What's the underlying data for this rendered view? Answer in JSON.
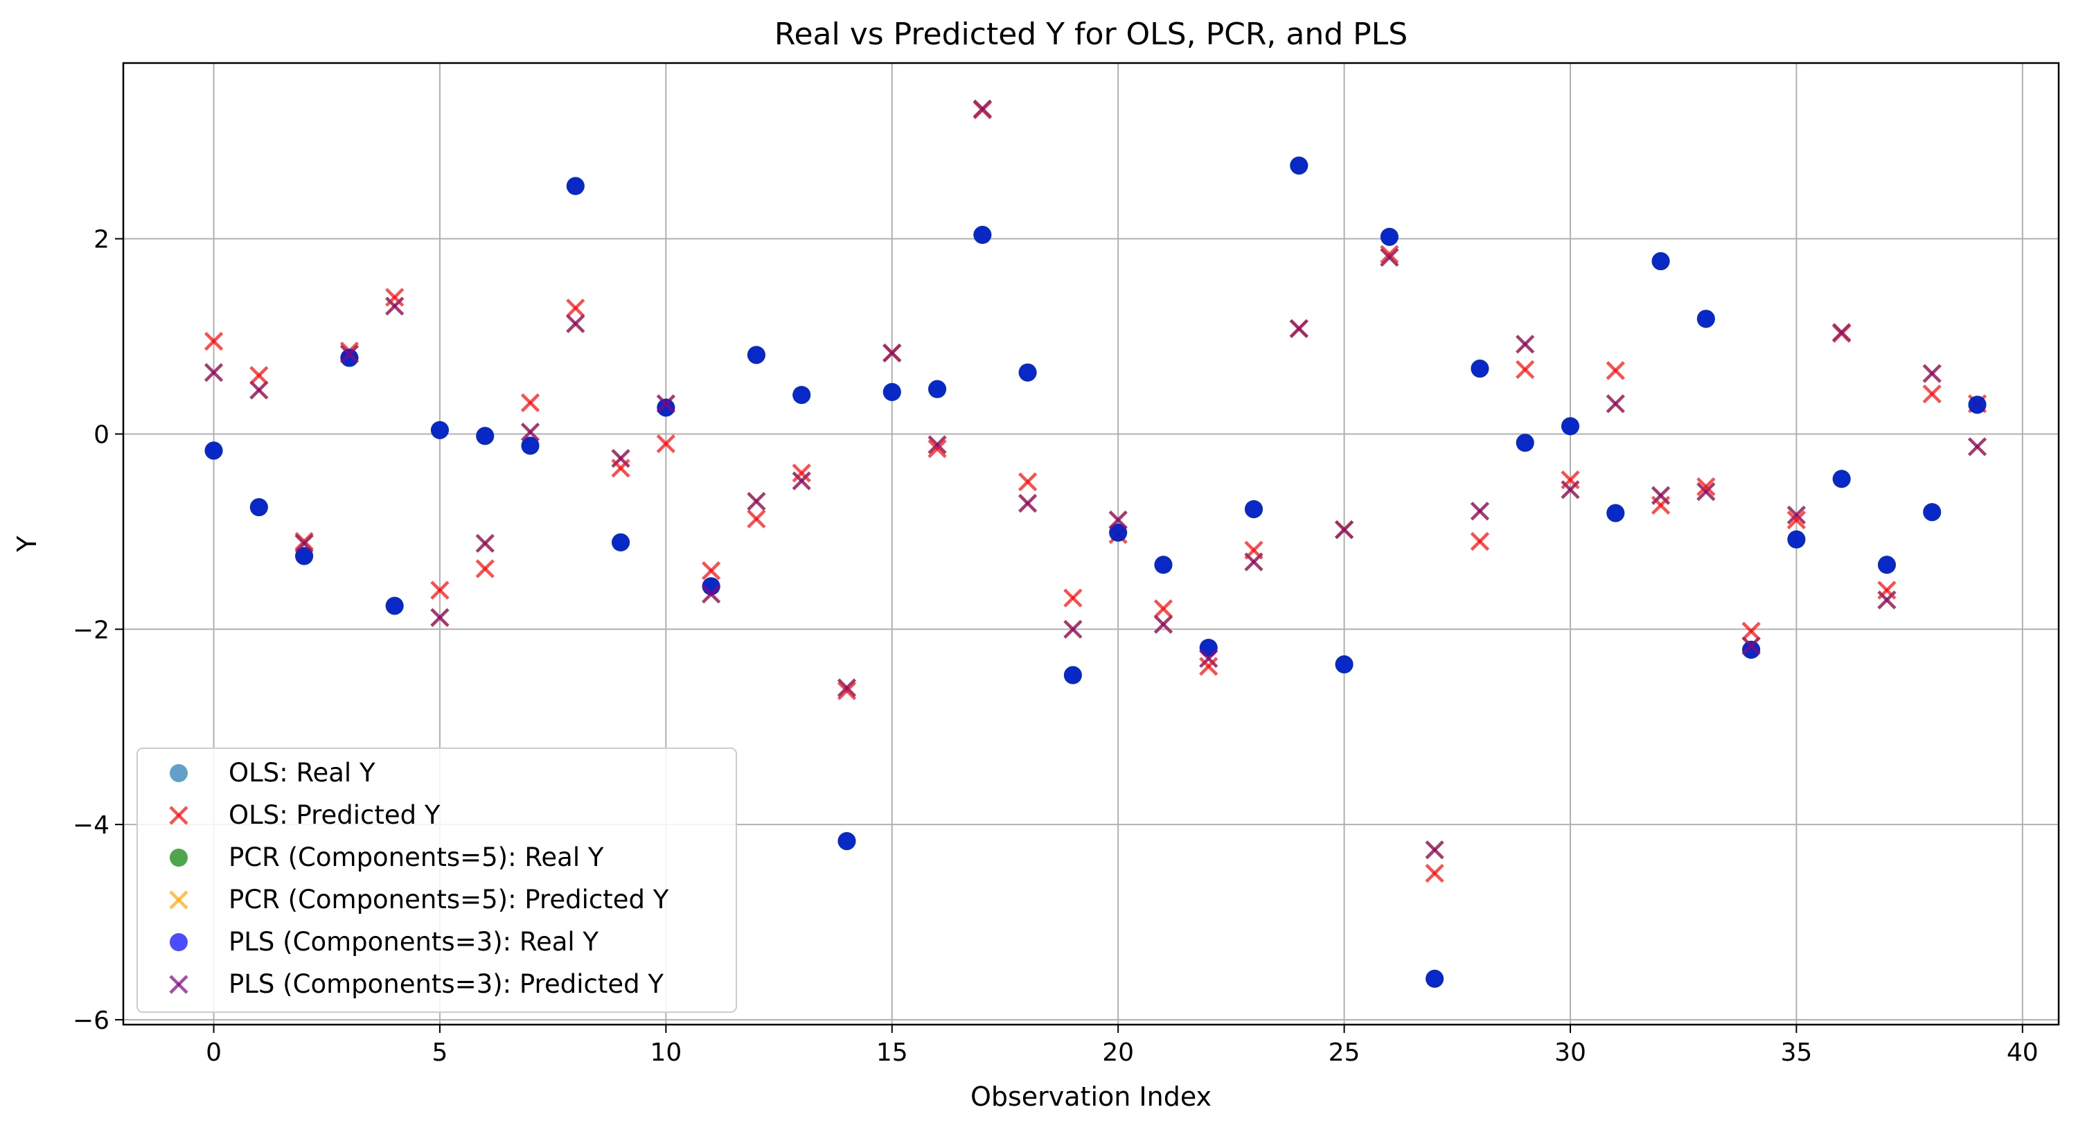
{
  "chart_data": {
    "type": "scatter",
    "title": "Real vs Predicted Y for OLS, PCR, and PLS",
    "xlabel": "Observation Index",
    "ylabel": "Y",
    "xlim": [
      -2,
      40.8
    ],
    "ylim": [
      -6.05,
      3.8
    ],
    "x_ticks": [
      0,
      5,
      10,
      15,
      20,
      25,
      30,
      35,
      40
    ],
    "y_ticks": [
      -6,
      -4,
      -2,
      0,
      2
    ],
    "x_tick_labels": [
      "0",
      "5",
      "10",
      "15",
      "20",
      "25",
      "30",
      "35",
      "40"
    ],
    "y_tick_labels": [
      "−6",
      "−4",
      "−2",
      "0",
      "2"
    ],
    "grid": true,
    "legend_position": "lower-left",
    "x": [
      0,
      1,
      2,
      3,
      4,
      5,
      6,
      7,
      8,
      9,
      10,
      11,
      12,
      13,
      14,
      15,
      16,
      17,
      18,
      19,
      20,
      21,
      22,
      23,
      24,
      25,
      26,
      27,
      28,
      29,
      30,
      31,
      32,
      33,
      34,
      35,
      36,
      37,
      38,
      39
    ],
    "series": [
      {
        "name": "OLS: Real Y",
        "marker": "circle",
        "color": "#1f77b4",
        "values": [
          -0.17,
          -0.75,
          -1.25,
          0.78,
          -1.76,
          0.04,
          -0.02,
          -0.12,
          2.54,
          -1.11,
          0.27,
          -1.56,
          0.81,
          0.4,
          -4.17,
          0.43,
          0.46,
          2.04,
          0.63,
          -2.47,
          -1.01,
          -1.34,
          -2.19,
          -0.77,
          2.75,
          -2.36,
          2.02,
          -5.58,
          0.67,
          -0.09,
          0.08,
          -0.81,
          1.77,
          1.18,
          -2.21,
          -1.08,
          -0.46,
          -1.34,
          -0.8,
          0.3
        ]
      },
      {
        "name": "OLS: Predicted Y",
        "marker": "x",
        "color": "#ff0000",
        "values": [
          0.95,
          0.6,
          -1.1,
          0.85,
          1.4,
          -1.6,
          -1.38,
          0.32,
          1.29,
          -0.35,
          -0.1,
          -1.4,
          -0.87,
          -0.4,
          -2.63,
          0.83,
          -0.15,
          3.32,
          -0.49,
          -1.68,
          -1.03,
          -1.79,
          -2.38,
          -1.19,
          1.08,
          -0.98,
          1.84,
          -4.5,
          -1.1,
          0.66,
          -0.47,
          0.65,
          -0.73,
          -0.54,
          -2.02,
          -0.88,
          1.03,
          -1.6,
          0.41,
          0.31
        ]
      },
      {
        "name": "PCR (Components=5): Real Y",
        "marker": "circle",
        "color": "#008000",
        "values": [
          -0.17,
          -0.75,
          -1.25,
          0.78,
          -1.76,
          0.04,
          -0.02,
          -0.12,
          2.54,
          -1.11,
          0.27,
          -1.56,
          0.81,
          0.4,
          -4.17,
          0.43,
          0.46,
          2.04,
          0.63,
          -2.47,
          -1.01,
          -1.34,
          -2.19,
          -0.77,
          2.75,
          -2.36,
          2.02,
          -5.58,
          0.67,
          -0.09,
          0.08,
          -0.81,
          1.77,
          1.18,
          -2.21,
          -1.08,
          -0.46,
          -1.34,
          -0.8,
          0.3
        ]
      },
      {
        "name": "PCR (Components=5): Predicted Y",
        "marker": "x",
        "color": "#ffa500",
        "values": [
          0.63,
          0.45,
          -1.12,
          0.82,
          1.31,
          -1.88,
          -1.12,
          0.02,
          1.13,
          -0.25,
          0.31,
          -1.64,
          -0.69,
          -0.48,
          -2.6,
          0.83,
          -0.11,
          3.33,
          -0.71,
          -2.0,
          -0.88,
          -1.95,
          -2.3,
          -1.31,
          1.08,
          -0.98,
          1.81,
          -4.26,
          -0.79,
          0.92,
          -0.57,
          0.31,
          -0.63,
          -0.59,
          -2.17,
          -0.83,
          1.04,
          -1.7,
          0.62,
          -0.13
        ]
      },
      {
        "name": "PLS (Components=3): Real Y",
        "marker": "circle",
        "color": "#0000ff",
        "values": [
          -0.17,
          -0.75,
          -1.25,
          0.78,
          -1.76,
          0.04,
          -0.02,
          -0.12,
          2.54,
          -1.11,
          0.27,
          -1.56,
          0.81,
          0.4,
          -4.17,
          0.43,
          0.46,
          2.04,
          0.63,
          -2.47,
          -1.01,
          -1.34,
          -2.19,
          -0.77,
          2.75,
          -2.36,
          2.02,
          -5.58,
          0.67,
          -0.09,
          0.08,
          -0.81,
          1.77,
          1.18,
          -2.21,
          -1.08,
          -0.46,
          -1.34,
          -0.8,
          0.3
        ]
      },
      {
        "name": "PLS (Components=3): Predicted Y",
        "marker": "x",
        "color": "#800080",
        "values": [
          0.63,
          0.45,
          -1.12,
          0.82,
          1.31,
          -1.88,
          -1.12,
          0.02,
          1.13,
          -0.25,
          0.31,
          -1.64,
          -0.69,
          -0.48,
          -2.6,
          0.83,
          -0.11,
          3.33,
          -0.71,
          -2.0,
          -0.88,
          -1.95,
          -2.3,
          -1.31,
          1.08,
          -0.98,
          1.81,
          -4.26,
          -0.79,
          0.92,
          -0.57,
          0.31,
          -0.63,
          -0.59,
          -2.17,
          -0.83,
          1.04,
          -1.7,
          0.62,
          -0.13
        ]
      }
    ]
  }
}
